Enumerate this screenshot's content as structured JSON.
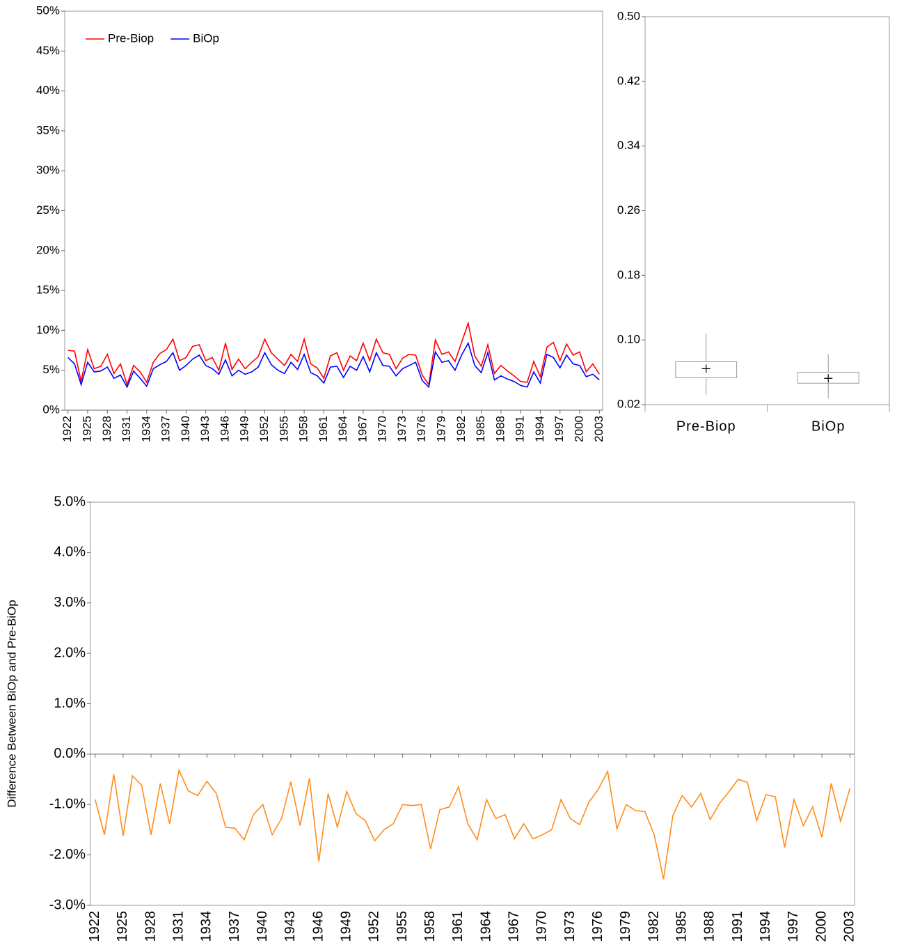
{
  "chart_data": [
    {
      "type": "line",
      "x": [
        1922,
        1923,
        1924,
        1925,
        1926,
        1927,
        1928,
        1929,
        1930,
        1931,
        1932,
        1933,
        1934,
        1935,
        1936,
        1937,
        1938,
        1939,
        1940,
        1941,
        1942,
        1943,
        1944,
        1945,
        1946,
        1947,
        1948,
        1949,
        1950,
        1951,
        1952,
        1953,
        1954,
        1955,
        1956,
        1957,
        1958,
        1959,
        1960,
        1961,
        1962,
        1963,
        1964,
        1965,
        1966,
        1967,
        1968,
        1969,
        1970,
        1971,
        1972,
        1973,
        1974,
        1975,
        1976,
        1977,
        1978,
        1979,
        1980,
        1981,
        1982,
        1983,
        1984,
        1985,
        1986,
        1987,
        1988,
        1989,
        1990,
        1991,
        1992,
        1993,
        1994,
        1995,
        1996,
        1997,
        1998,
        1999,
        2000,
        2001,
        2002,
        2003
      ],
      "xlim": [
        1921.5,
        2003.5
      ],
      "xticks": [
        1922,
        1925,
        1928,
        1931,
        1934,
        1937,
        1940,
        1943,
        1946,
        1949,
        1952,
        1955,
        1958,
        1961,
        1964,
        1967,
        1970,
        1973,
        1976,
        1979,
        1982,
        1985,
        1988,
        1991,
        1994,
        1997,
        2000,
        2003
      ],
      "ylim": [
        0,
        50
      ],
      "yticks": [
        {
          "value": 0,
          "label": "0%"
        },
        {
          "value": 5,
          "label": "5%"
        },
        {
          "value": 10,
          "label": "10%"
        },
        {
          "value": 15,
          "label": "15%"
        },
        {
          "value": 20,
          "label": "20%"
        },
        {
          "value": 25,
          "label": "25%"
        },
        {
          "value": 30,
          "label": "30%"
        },
        {
          "value": 35,
          "label": "35%"
        },
        {
          "value": 40,
          "label": "40%"
        },
        {
          "value": 45,
          "label": "45%"
        },
        {
          "value": 50,
          "label": "50%"
        }
      ],
      "legend": "upper left",
      "series": [
        {
          "name": "Pre-Biop",
          "color": "#ff0000",
          "values": [
            7.5,
            7.4,
            3.6,
            7.6,
            5.2,
            5.5,
            7.0,
            4.6,
            5.8,
            3.2,
            5.6,
            4.8,
            3.5,
            6.0,
            7.1,
            7.6,
            8.9,
            6.2,
            6.6,
            8.0,
            8.2,
            6.2,
            6.6,
            5.0,
            8.4,
            5.1,
            6.4,
            5.2,
            6.0,
            6.7,
            8.9,
            7.2,
            6.4,
            5.6,
            7.0,
            6.1,
            8.9,
            5.8,
            5.3,
            4.0,
            6.8,
            7.2,
            5.0,
            6.8,
            6.2,
            8.4,
            6.2,
            8.9,
            7.2,
            7.0,
            5.2,
            6.5,
            7.0,
            6.9,
            4.4,
            3.2,
            8.8,
            7.0,
            7.3,
            6.1,
            8.5,
            10.9,
            6.8,
            5.5,
            8.2,
            4.6,
            5.6,
            4.9,
            4.3,
            3.6,
            3.5,
            6.1,
            4.2,
            7.9,
            8.5,
            6.2,
            8.3,
            6.9,
            7.3,
            4.8,
            5.8,
            4.5
          ]
        },
        {
          "name": "BiOp",
          "color": "#0000ff",
          "values": [
            6.6,
            5.8,
            3.2,
            6.0,
            4.8,
            4.9,
            5.4,
            4.0,
            4.4,
            2.9,
            4.9,
            4.0,
            3.0,
            5.2,
            5.7,
            6.1,
            7.2,
            5.0,
            5.6,
            6.4,
            6.9,
            5.6,
            5.2,
            4.5,
            6.3,
            4.3,
            5.0,
            4.5,
            4.8,
            5.4,
            7.2,
            5.7,
            5.0,
            4.6,
            6.0,
            5.1,
            7.0,
            4.7,
            4.3,
            3.4,
            5.4,
            5.5,
            4.1,
            5.5,
            5.0,
            6.7,
            4.8,
            7.2,
            5.6,
            5.5,
            4.3,
            5.2,
            5.6,
            6.0,
            3.7,
            2.9,
            7.3,
            6.0,
            6.2,
            5.0,
            6.9,
            8.4,
            5.6,
            4.7,
            7.2,
            3.8,
            4.3,
            3.9,
            3.6,
            3.1,
            2.9,
            4.8,
            3.4,
            7.0,
            6.6,
            5.3,
            6.9,
            5.8,
            5.6,
            4.2,
            4.5,
            3.8
          ]
        }
      ]
    },
    {
      "type": "box",
      "categories": [
        "Pre-Biop",
        "BiOp"
      ],
      "min": [
        0.032,
        0.0275
      ],
      "q1": [
        0.0533,
        0.0465
      ],
      "q3": [
        0.073,
        0.06
      ],
      "max": [
        0.108,
        0.0826
      ],
      "mean": [
        0.0645,
        0.0525
      ],
      "ylim": [
        0.02,
        0.5
      ],
      "yticks": [
        0.02,
        {
          "value": 0.1,
          "label": "0.10"
        },
        0.18,
        0.26,
        0.34,
        0.42,
        {
          "value": 0.5,
          "label": "0.50"
        }
      ]
    },
    {
      "type": "line",
      "ylabel": "Difference Between BiOp and Pre-BiOp",
      "x": [
        1922,
        1923,
        1924,
        1925,
        1926,
        1927,
        1928,
        1929,
        1930,
        1931,
        1932,
        1933,
        1934,
        1935,
        1936,
        1937,
        1938,
        1939,
        1940,
        1941,
        1942,
        1943,
        1944,
        1945,
        1946,
        1947,
        1948,
        1949,
        1950,
        1951,
        1952,
        1953,
        1954,
        1955,
        1956,
        1957,
        1958,
        1959,
        1960,
        1961,
        1962,
        1963,
        1964,
        1965,
        1966,
        1967,
        1968,
        1969,
        1970,
        1971,
        1972,
        1973,
        1974,
        1975,
        1976,
        1977,
        1978,
        1979,
        1980,
        1981,
        1982,
        1983,
        1984,
        1985,
        1986,
        1987,
        1988,
        1989,
        1990,
        1991,
        1992,
        1993,
        1994,
        1995,
        1996,
        1997,
        1998,
        1999,
        2000,
        2001,
        2002,
        2003
      ],
      "xlim": [
        1921.5,
        2003.5
      ],
      "xticks": [
        1922,
        1925,
        1928,
        1931,
        1934,
        1937,
        1940,
        1943,
        1946,
        1949,
        1952,
        1955,
        1958,
        1961,
        1964,
        1967,
        1970,
        1973,
        1976,
        1979,
        1982,
        1985,
        1988,
        1991,
        1994,
        1997,
        2000,
        2003
      ],
      "ylim": [
        -3,
        5
      ],
      "yticks": [
        {
          "value": -3,
          "label": "-3.0%"
        },
        {
          "value": -2,
          "label": "-2.0%"
        },
        {
          "value": -1,
          "label": "-1.0%"
        },
        {
          "value": 0,
          "label": "0.0%"
        },
        {
          "value": 1,
          "label": "1.0%"
        },
        {
          "value": 2,
          "label": "2.0%"
        },
        {
          "value": 3,
          "label": "3.0%"
        },
        {
          "value": 4,
          "label": "4.0%"
        },
        {
          "value": 5,
          "label": "5.0%"
        }
      ],
      "color": "#ff8c1a",
      "values": [
        -0.9,
        -1.6,
        -0.4,
        -1.62,
        -0.43,
        -0.62,
        -1.6,
        -0.58,
        -1.38,
        -0.32,
        -0.73,
        -0.82,
        -0.54,
        -0.78,
        -1.45,
        -1.47,
        -1.7,
        -1.2,
        -1.0,
        -1.6,
        -1.28,
        -0.55,
        -1.42,
        -0.48,
        -2.13,
        -0.78,
        -1.45,
        -0.74,
        -1.18,
        -1.32,
        -1.72,
        -1.5,
        -1.38,
        -1.0,
        -1.02,
        -1.0,
        -1.88,
        -1.1,
        -1.05,
        -0.65,
        -1.38,
        -1.7,
        -0.9,
        -1.28,
        -1.2,
        -1.68,
        -1.38,
        -1.68,
        -1.6,
        -1.5,
        -0.9,
        -1.28,
        -1.4,
        -0.95,
        -0.7,
        -0.34,
        -1.48,
        -1.0,
        -1.12,
        -1.14,
        -1.6,
        -2.48,
        -1.22,
        -0.82,
        -1.05,
        -0.78,
        -1.3,
        -0.98,
        -0.75,
        -0.5,
        -0.56,
        -1.32,
        -0.8,
        -0.85,
        -1.85,
        -0.9,
        -1.42,
        -1.05,
        -1.65,
        -0.58,
        -1.33,
        -0.68
      ]
    }
  ]
}
